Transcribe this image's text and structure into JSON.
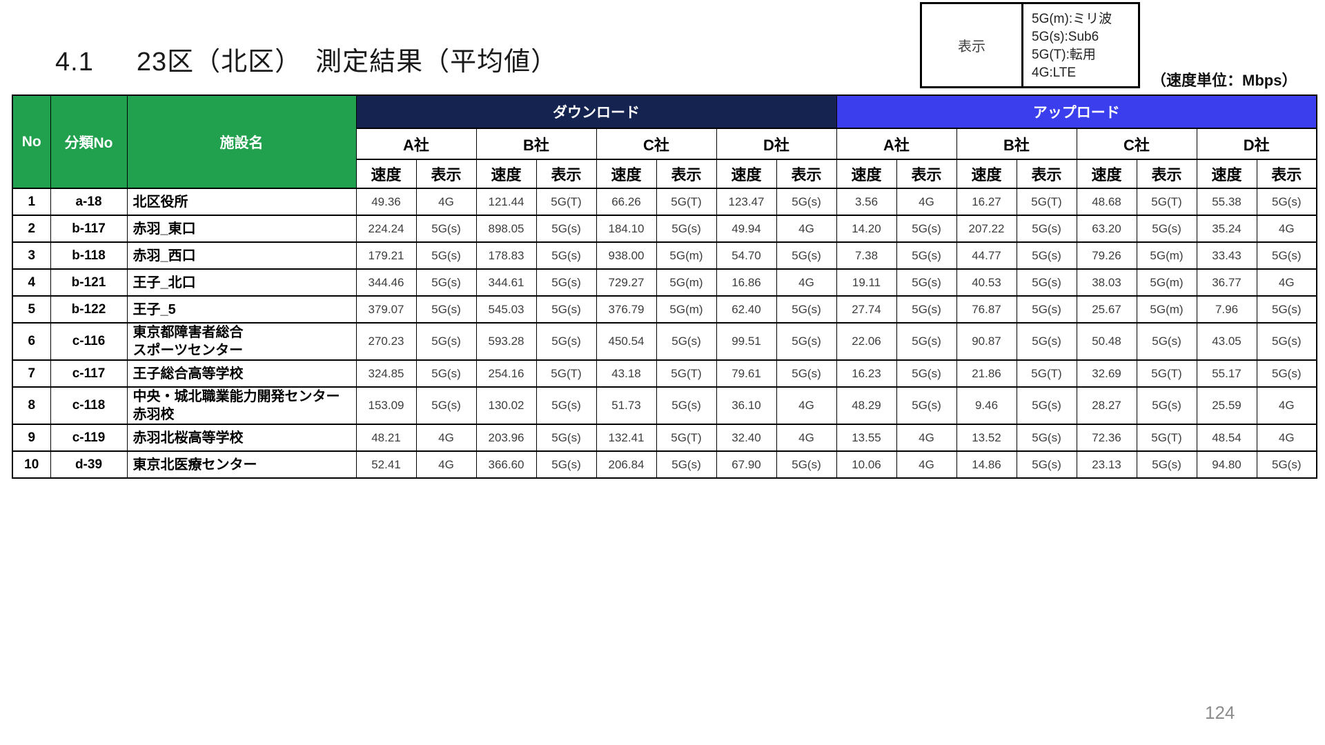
{
  "page": {
    "title_number": "4.1",
    "title_text": "23区（北区）　測定結果（平均値）",
    "unit_note": "（速度単位：Mbps）",
    "page_number": "124"
  },
  "legend": {
    "label": "表示",
    "lines": [
      "5G(m):ミリ波",
      "5G(s):Sub6",
      "5G(T):転用",
      "4G:LTE"
    ]
  },
  "colors": {
    "header_green": "#21A04D",
    "download_navy": "#152350",
    "upload_blue": "#3A3EEC",
    "page_number_gray": "#8C8C8C"
  },
  "table": {
    "col_no": "No",
    "col_class": "分類No",
    "col_facility": "施設名",
    "group_download": "ダウンロード",
    "group_upload": "アップロード",
    "companies": [
      "A社",
      "B社",
      "C社",
      "D社"
    ],
    "sub_speed": "速度",
    "sub_display": "表示",
    "rows": [
      {
        "no": "1",
        "class_no": "a-18",
        "facility": [
          "北区役所"
        ],
        "values": [
          "49.36",
          "4G",
          "121.44",
          "5G(T)",
          "66.26",
          "5G(T)",
          "123.47",
          "5G(s)",
          "3.56",
          "4G",
          "16.27",
          "5G(T)",
          "48.68",
          "5G(T)",
          "55.38",
          "5G(s)"
        ]
      },
      {
        "no": "2",
        "class_no": "b-117",
        "facility": [
          "赤羽_東口"
        ],
        "values": [
          "224.24",
          "5G(s)",
          "898.05",
          "5G(s)",
          "184.10",
          "5G(s)",
          "49.94",
          "4G",
          "14.20",
          "5G(s)",
          "207.22",
          "5G(s)",
          "63.20",
          "5G(s)",
          "35.24",
          "4G"
        ]
      },
      {
        "no": "3",
        "class_no": "b-118",
        "facility": [
          "赤羽_西口"
        ],
        "values": [
          "179.21",
          "5G(s)",
          "178.83",
          "5G(s)",
          "938.00",
          "5G(m)",
          "54.70",
          "5G(s)",
          "7.38",
          "5G(s)",
          "44.77",
          "5G(s)",
          "79.26",
          "5G(m)",
          "33.43",
          "5G(s)"
        ]
      },
      {
        "no": "4",
        "class_no": "b-121",
        "facility": [
          "王子_北口"
        ],
        "values": [
          "344.46",
          "5G(s)",
          "344.61",
          "5G(s)",
          "729.27",
          "5G(m)",
          "16.86",
          "4G",
          "19.11",
          "5G(s)",
          "40.53",
          "5G(s)",
          "38.03",
          "5G(m)",
          "36.77",
          "4G"
        ]
      },
      {
        "no": "5",
        "class_no": "b-122",
        "facility": [
          "王子_5"
        ],
        "values": [
          "379.07",
          "5G(s)",
          "545.03",
          "5G(s)",
          "376.79",
          "5G(m)",
          "62.40",
          "5G(s)",
          "27.74",
          "5G(s)",
          "76.87",
          "5G(s)",
          "25.67",
          "5G(m)",
          "7.96",
          "5G(s)"
        ]
      },
      {
        "no": "6",
        "class_no": "c-116",
        "facility": [
          "東京都障害者総合",
          "スポーツセンター"
        ],
        "values": [
          "270.23",
          "5G(s)",
          "593.28",
          "5G(s)",
          "450.54",
          "5G(s)",
          "99.51",
          "5G(s)",
          "22.06",
          "5G(s)",
          "90.87",
          "5G(s)",
          "50.48",
          "5G(s)",
          "43.05",
          "5G(s)"
        ]
      },
      {
        "no": "7",
        "class_no": "c-117",
        "facility": [
          "王子総合高等学校"
        ],
        "values": [
          "324.85",
          "5G(s)",
          "254.16",
          "5G(T)",
          "43.18",
          "5G(T)",
          "79.61",
          "5G(s)",
          "16.23",
          "5G(s)",
          "21.86",
          "5G(T)",
          "32.69",
          "5G(T)",
          "55.17",
          "5G(s)"
        ]
      },
      {
        "no": "8",
        "class_no": "c-118",
        "facility": [
          "中央・城北職業能力開発センター",
          "赤羽校"
        ],
        "values": [
          "153.09",
          "5G(s)",
          "130.02",
          "5G(s)",
          "51.73",
          "5G(s)",
          "36.10",
          "4G",
          "48.29",
          "5G(s)",
          "9.46",
          "5G(s)",
          "28.27",
          "5G(s)",
          "25.59",
          "4G"
        ]
      },
      {
        "no": "9",
        "class_no": "c-119",
        "facility": [
          "赤羽北桜高等学校"
        ],
        "values": [
          "48.21",
          "4G",
          "203.96",
          "5G(s)",
          "132.41",
          "5G(T)",
          "32.40",
          "4G",
          "13.55",
          "4G",
          "13.52",
          "5G(s)",
          "72.36",
          "5G(T)",
          "48.54",
          "4G"
        ]
      },
      {
        "no": "10",
        "class_no": "d-39",
        "facility": [
          "東京北医療センター"
        ],
        "values": [
          "52.41",
          "4G",
          "366.60",
          "5G(s)",
          "206.84",
          "5G(s)",
          "67.90",
          "5G(s)",
          "10.06",
          "4G",
          "14.86",
          "5G(s)",
          "23.13",
          "5G(s)",
          "94.80",
          "5G(s)"
        ]
      }
    ]
  }
}
